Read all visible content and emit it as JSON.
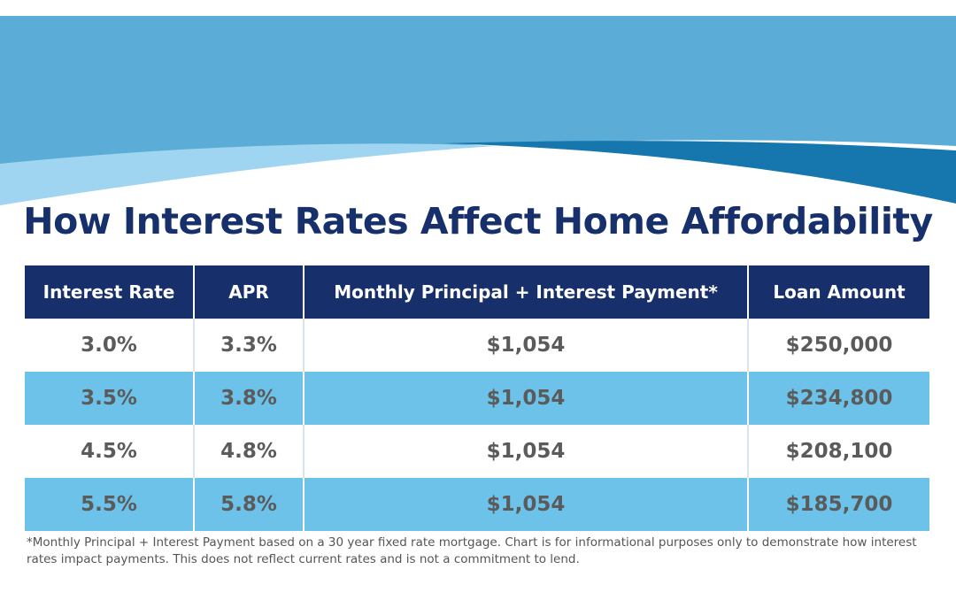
{
  "title": "How Interest Rates Affect Home Affordability",
  "table": {
    "headers": [
      "Interest Rate",
      "APR",
      "Monthly Principal + Interest Payment*",
      "Loan Amount"
    ],
    "rows": [
      [
        "3.0%",
        "3.3%",
        "$1,054",
        "$250,000"
      ],
      [
        "3.5%",
        "3.8%",
        "$1,054",
        "$234,800"
      ],
      [
        "4.5%",
        "4.8%",
        "$1,054",
        "$208,100"
      ],
      [
        "5.5%",
        "5.8%",
        "$1,054",
        "$185,700"
      ]
    ]
  },
  "footnote": "*Monthly Principal + Interest Payment based on a 30 year fixed rate mortgage. Chart is for informational purposes only to demonstrate how interest rates impact payments. This does not reflect current rates and is not a commitment to lend."
}
